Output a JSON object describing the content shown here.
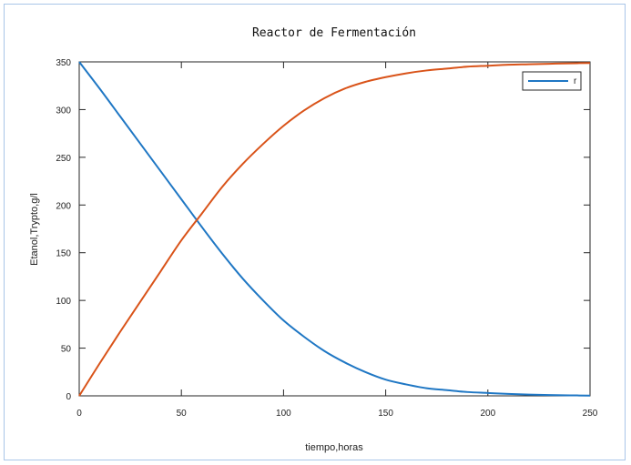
{
  "chart_data": {
    "type": "line",
    "title": "Reactor de Fermentación",
    "xlabel": "tiempo,horas",
    "ylabel": "Etanol,Trypto,g/l",
    "xlim": [
      0,
      250
    ],
    "ylim": [
      0,
      350
    ],
    "xticks": [
      0,
      50,
      100,
      150,
      200,
      250
    ],
    "yticks": [
      0,
      50,
      100,
      150,
      200,
      250,
      300,
      350
    ],
    "xtick_labels": [
      "0",
      "50",
      "100",
      "150",
      "200",
      "250"
    ],
    "ytick_labels": [
      "0",
      "50",
      "100",
      "150",
      "200",
      "250",
      "300",
      "350"
    ],
    "grid": false,
    "legend": {
      "placement": "top-right",
      "entries": [
        "r"
      ]
    },
    "series": [
      {
        "name": "r",
        "color": "#1f77c4",
        "x": [
          0,
          10,
          20,
          30,
          40,
          50,
          60,
          70,
          80,
          90,
          100,
          110,
          120,
          130,
          140,
          150,
          160,
          170,
          180,
          190,
          200,
          210,
          220,
          230,
          240,
          250
        ],
        "y": [
          350,
          322,
          293,
          264,
          235,
          206,
          177,
          149,
          123,
          100,
          79,
          62,
          47,
          35,
          25,
          17,
          12,
          8,
          6,
          4,
          3,
          2,
          1.3,
          0.8,
          0.5,
          0.3
        ]
      },
      {
        "name": "",
        "color": "#d95319",
        "x": [
          0,
          10,
          20,
          30,
          40,
          50,
          60,
          70,
          80,
          90,
          100,
          110,
          120,
          130,
          140,
          150,
          160,
          170,
          180,
          190,
          200,
          210,
          220,
          230,
          240,
          250
        ],
        "y": [
          0,
          34,
          67,
          99,
          131,
          163,
          191,
          219,
          243,
          264,
          283,
          299,
          312,
          322,
          329,
          334,
          338,
          341,
          343,
          345,
          346,
          347,
          347.5,
          348,
          348.5,
          348.8
        ]
      }
    ]
  }
}
